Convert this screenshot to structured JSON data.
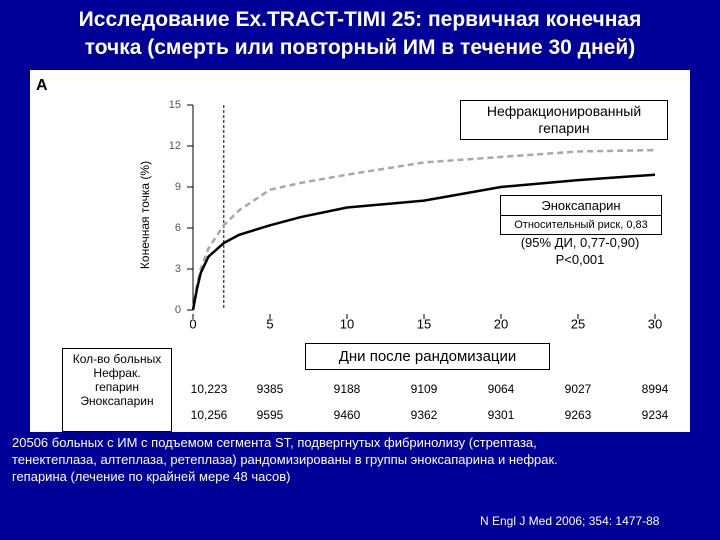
{
  "chart_data": {
    "type": "line",
    "title_lines": [
      "Исследование Ex.TRACT-TIMI 25: первичная конечная",
      "точка (смерть или повторный ИМ в течение 30 дней)"
    ],
    "panel_label": "A",
    "y_label": "Конечная точка (%)",
    "x_label": "Дни после рандомизации",
    "x": [
      0,
      0.25,
      0.5,
      1,
      2,
      3,
      5,
      7,
      10,
      15,
      20,
      25,
      30
    ],
    "series": [
      {
        "name": "Нефракционированный гепарин",
        "color": "#a8a8a8",
        "line_style": "dashed",
        "values": [
          0,
          1.8,
          3.0,
          4.5,
          6.2,
          7.3,
          8.8,
          9.3,
          9.9,
          10.8,
          11.2,
          11.6,
          11.7
        ]
      },
      {
        "name": "Эноксапарин",
        "color": "#000000",
        "line_style": "solid",
        "values": [
          0,
          1.5,
          2.7,
          3.9,
          4.9,
          5.5,
          6.2,
          6.8,
          7.5,
          8.0,
          9.0,
          9.5,
          9.9
        ]
      }
    ],
    "reference_line_x": 2,
    "xlim": [
      0,
      30
    ],
    "xticks": [
      0,
      5,
      10,
      15,
      20,
      25,
      30
    ],
    "ylim": [
      0,
      15
    ],
    "yticks": [
      0,
      3,
      6,
      9,
      12,
      15
    ],
    "annotations": [
      "Относительный риск, 0,83",
      "(95% ДИ, 0,77-0,90)",
      "P<0,001"
    ],
    "at_risk": {
      "header": "Кол-во больных",
      "rows": [
        {
          "name": "Нефрак. гепарин",
          "values": [
            "10,223",
            "9385",
            "9188",
            "9109",
            "9064",
            "9027",
            "8994"
          ]
        },
        {
          "name": "Эноксапарин",
          "values": [
            "10,256",
            "9595",
            "9460",
            "9362",
            "9301",
            "9263",
            "9234"
          ]
        }
      ]
    },
    "caption_lines": [
      "20506 больных с ИМ с подъемом сегмента ST, подвергнутых фибринолизу (стрептаза,",
      "тенектеплаза, алтеплаза, ретеплаза) рандомизированы в группы эноксапарина и нефрак.",
      "гепарина (лечение по крайней мере 48 часов)"
    ],
    "reference": "N Engl J Med 2006; 354: 1477-88"
  }
}
